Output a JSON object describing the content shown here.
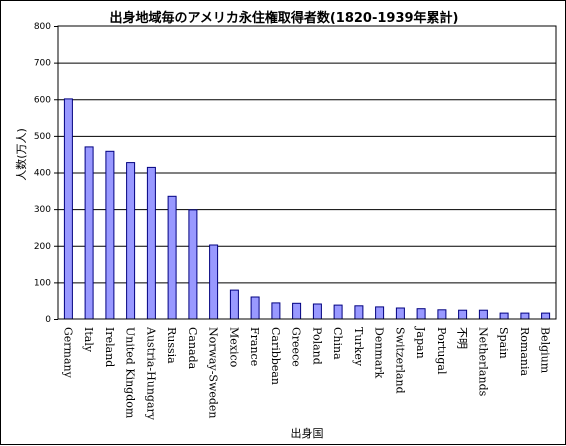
{
  "chart_data": {
    "type": "bar",
    "title": "出身地域毎のアメリカ永住権取得者数(1820-1939年累計)",
    "xlabel": "出身国",
    "ylabel": "人数(万人)",
    "ylim": [
      0,
      800
    ],
    "yticks": [
      0,
      100,
      200,
      300,
      400,
      500,
      600,
      700,
      800
    ],
    "grid": true,
    "legend": "none",
    "colors": {
      "bar_fill": "#9999ff",
      "bar_stroke": "#000080",
      "grid": "#000000",
      "background": "#ffffff"
    },
    "categories": [
      "Germany",
      "Italy",
      "Ireland",
      "United Kingdom",
      "Austria-Hungary",
      "Russia",
      "Canada",
      "Norway-Sweden",
      "Mexico",
      "France",
      "Caribbean",
      "Greece",
      "Poland",
      "China",
      "Turkey",
      "Denmark",
      "Switzerland",
      "Japan",
      "Portugal",
      "不明",
      "Netherlands",
      "Spain",
      "Romania",
      "Belgium"
    ],
    "values": [
      601,
      470,
      458,
      427,
      414,
      335,
      298,
      202,
      79,
      60,
      44,
      43,
      41,
      38,
      36,
      33,
      30,
      28,
      25,
      24,
      24,
      16,
      16,
      16
    ]
  }
}
